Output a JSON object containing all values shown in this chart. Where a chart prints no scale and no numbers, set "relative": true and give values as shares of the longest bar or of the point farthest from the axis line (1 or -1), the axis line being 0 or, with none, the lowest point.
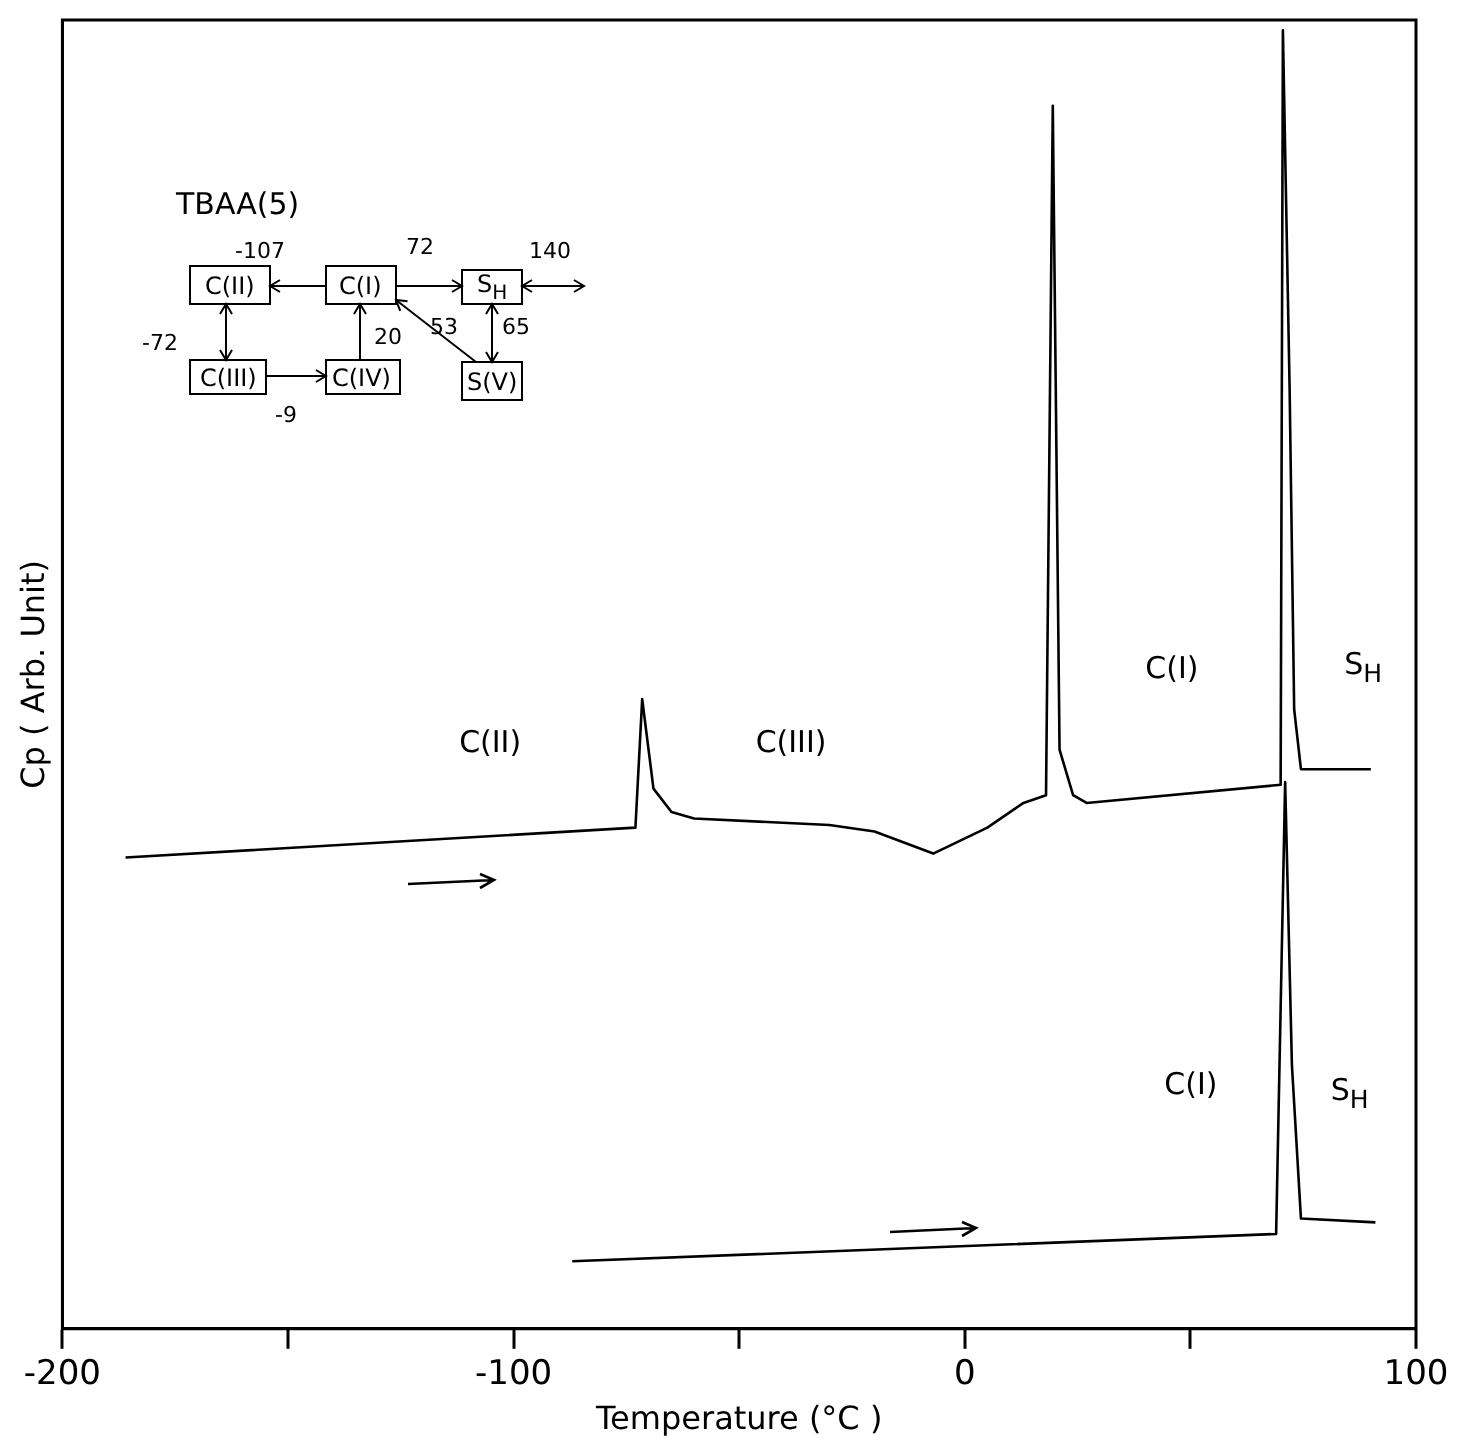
{
  "chart_data": {
    "type": "line",
    "xlabel": "Temperature (°C )",
    "ylabel": "Cp ( Arb. Unit)",
    "relative": true,
    "xlim": [
      -200,
      100
    ],
    "xticks": [
      -200,
      {
        "value": -150,
        "label": null
      },
      -100,
      {
        "value": -50,
        "label": null
      },
      0,
      {
        "value": 50,
        "label": null
      },
      100
    ],
    "grid": false,
    "legend": false,
    "marker": "none",
    "line_style": "solid",
    "series": [
      {
        "color": "#000000",
        "x": [
          -186,
          -73,
          -71.5,
          -69,
          -65,
          -60,
          -30,
          -20,
          -7,
          5,
          13,
          18,
          19.5,
          21,
          24,
          27,
          70,
          70.5,
          72,
          73,
          74.5,
          90
        ],
        "values": [
          0.363,
          0.386,
          0.485,
          0.416,
          0.398,
          0.393,
          0.388,
          0.383,
          0.366,
          0.386,
          0.405,
          0.411,
          0.942,
          0.446,
          0.411,
          0.405,
          0.419,
          1,
          0.722,
          0.477,
          0.431,
          0.431
        ]
      },
      {
        "color": "#000000",
        "x": [
          -87,
          69,
          71,
          72.5,
          74.5,
          91
        ],
        "values": [
          0.052,
          0.073,
          0.421,
          0.203,
          0.085,
          0.082
        ]
      }
    ],
    "annotations": [
      "C(II)",
      "C(III)",
      "C(I)",
      "S$_{H}$",
      "C(I)",
      "S$_{H}$",
      "TBAA(5)",
      "C(II)",
      "C(I)",
      "S$_{H}$",
      "C(III)",
      "C(IV)",
      "S(V)",
      "-107",
      "72",
      "140",
      "-72",
      "20",
      "53",
      "65",
      "-9"
    ]
  }
}
